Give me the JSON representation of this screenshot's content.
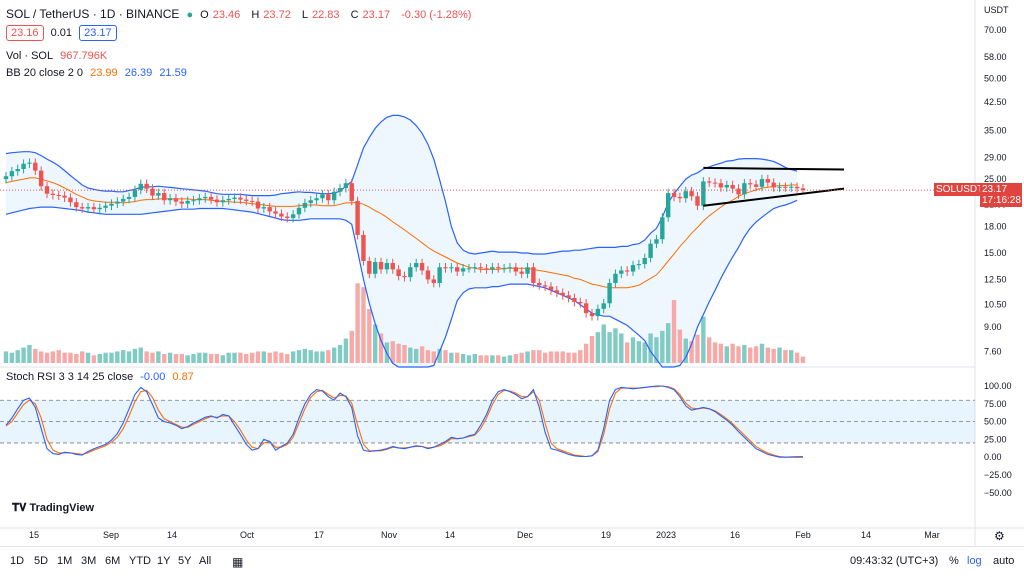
{
  "header": {
    "symbol": "SOL / TetherUS · 1D · BINANCE",
    "ohlc": {
      "o_label": "O",
      "o": "23.46",
      "h_label": "H",
      "h": "23.72",
      "l_label": "L",
      "l": "22.83",
      "c_label": "C",
      "c": "23.17",
      "chg": "-0.30 (-1.28%)"
    },
    "bid": "23.16",
    "spread": "0.01",
    "ask": "23.17"
  },
  "indicators": {
    "vol_label": "Vol · SOL",
    "vol_value": "967.796K",
    "bb_label": "BB 20 close 2 0",
    "bb_basis": "23.99",
    "bb_upper": "26.39",
    "bb_lower": "21.59",
    "stoch_label": "Stoch RSI 3 3 14 25 close",
    "stoch_k": "-0.00",
    "stoch_d": "0.87"
  },
  "axis": {
    "currency": "USDT",
    "price_ticks": [
      "70.00",
      "58.00",
      "50.00",
      "42.50",
      "35.00",
      "29.00",
      "25.00",
      "21.00",
      "18.00",
      "15.00",
      "12.50",
      "10.50",
      "9.00",
      "7.60"
    ],
    "rsi_ticks": [
      "100.00",
      "75.00",
      "50.00",
      "25.00",
      "0.00",
      "−25.00",
      "−50.00"
    ],
    "time_ticks": [
      "15",
      "Sep",
      "14",
      "Oct",
      "17",
      "Nov",
      "14",
      "Dec",
      "19",
      "2023",
      "16",
      "Feb",
      "14",
      "Mar"
    ],
    "symbol_tag": "SOLUSDT",
    "last_price": "23.17",
    "countdown": "17:16:28"
  },
  "bottom": {
    "timeframes": [
      "1D",
      "5D",
      "1M",
      "3M",
      "6M",
      "YTD",
      "1Y",
      "5Y",
      "All"
    ],
    "clock": "09:43:32 (UTC+3)",
    "pct": "%",
    "log": "log",
    "auto": "auto"
  },
  "brand": "TradingView",
  "colors": {
    "up": "#26a69a",
    "down": "#ef5350",
    "band": "#2962ff",
    "basis": "#ff6d00",
    "k": "#2962ff",
    "d": "#ff6d00",
    "vol_up": "#80cbc4",
    "vol_down": "#f7a9a7"
  },
  "chart_data": {
    "type": "candlestick",
    "scale": "log",
    "ylim": [
      7.0,
      75.0
    ],
    "closes": [
      25.5,
      26.4,
      26.8,
      27.8,
      28.0,
      26.5,
      23.8,
      22.6,
      22.4,
      22.3,
      22.0,
      21.3,
      20.6,
      20.4,
      20.6,
      20.3,
      20.5,
      20.8,
      21.1,
      21.4,
      21.8,
      22.1,
      23.2,
      24.2,
      23.4,
      22.3,
      22.7,
      21.6,
      21.9,
      21.4,
      21.1,
      21.5,
      21.6,
      21.9,
      22.1,
      21.7,
      21.3,
      21.6,
      21.8,
      22.0,
      21.7,
      21.5,
      21.4,
      20.4,
      20.6,
      20.0,
      19.7,
      19.3,
      19.1,
      19.6,
      20.5,
      21.2,
      21.6,
      21.9,
      22.5,
      21.6,
      22.9,
      23.5,
      24.3,
      21.5,
      17.0,
      14.2,
      13.0,
      14.1,
      13.4,
      14.0,
      13.4,
      12.8,
      12.7,
      13.6,
      14.0,
      13.3,
      12.5,
      12.2,
      13.6,
      13.5,
      13.6,
      13.2,
      13.5,
      13.5,
      13.6,
      13.5,
      13.4,
      13.6,
      13.5,
      13.5,
      13.6,
      13.2,
      13.0,
      13.6,
      12.2,
      12.0,
      11.9,
      11.6,
      11.4,
      11.2,
      11.0,
      10.7,
      10.6,
      9.9,
      9.7,
      10.2,
      10.6,
      12.2,
      13.0,
      13.3,
      13.2,
      13.8,
      13.9,
      14.5,
      16.0,
      16.5,
      19.2,
      22.7,
      22.1,
      21.9,
      23.0,
      22.2,
      20.8,
      24.6,
      24.4,
      24.3,
      23.6,
      24.0,
      23.4,
      22.5,
      24.3,
      24.1,
      23.7,
      25.0,
      24.4,
      23.6,
      23.7,
      23.6,
      23.7,
      23.46,
      23.17
    ],
    "bb_upper": [
      29.8,
      30.0,
      30.1,
      30.2,
      30.2,
      30.0,
      29.4,
      28.7,
      28.1,
      27.4,
      26.5,
      25.6,
      24.8,
      24.0,
      23.5,
      23.3,
      23.1,
      23.0,
      23.0,
      22.9,
      22.9,
      23.1,
      23.3,
      23.6,
      23.7,
      23.7,
      23.8,
      23.7,
      23.6,
      23.5,
      23.4,
      23.3,
      23.2,
      23.1,
      23.0,
      22.8,
      22.6,
      22.5,
      22.5,
      22.5,
      22.5,
      22.4,
      22.3,
      22.3,
      22.3,
      22.3,
      22.4,
      22.6,
      22.7,
      22.8,
      22.9,
      22.8,
      22.8,
      22.7,
      22.6,
      22.6,
      22.7,
      23.0,
      23.8,
      24.6,
      27.6,
      31.0,
      33.3,
      35.5,
      37.1,
      38.3,
      38.8,
      38.8,
      38.4,
      37.6,
      36.2,
      34.3,
      31.8,
      28.7,
      24.9,
      21.4,
      18.0,
      16.1,
      15.3,
      15.0,
      14.9,
      15.0,
      15.1,
      15.2,
      15.1,
      15.1,
      15.1,
      15.1,
      15.0,
      15.0,
      14.9,
      14.9,
      14.9,
      15.0,
      15.1,
      15.2,
      15.2,
      15.3,
      15.3,
      15.4,
      15.5,
      15.6,
      15.6,
      15.6,
      15.6,
      15.7,
      15.7,
      15.9,
      16.0,
      16.4,
      17.2,
      17.8,
      19.2,
      21.2,
      22.6,
      23.8,
      25.0,
      25.7,
      26.1,
      26.8,
      27.2,
      27.6,
      27.9,
      28.3,
      28.4,
      28.7,
      28.8,
      28.8,
      28.8,
      28.7,
      28.5,
      28.2,
      27.7,
      27.1,
      26.7,
      26.39
    ],
    "bb_lower": [
      19.6,
      19.8,
      20.0,
      20.2,
      20.4,
      20.5,
      20.6,
      20.6,
      20.6,
      20.5,
      20.4,
      20.3,
      20.2,
      20.1,
      19.9,
      19.8,
      19.7,
      19.6,
      19.6,
      19.6,
      19.6,
      19.6,
      19.6,
      19.6,
      19.7,
      19.8,
      19.9,
      20.0,
      20.1,
      20.2,
      20.3,
      20.3,
      20.3,
      20.4,
      20.4,
      20.4,
      20.4,
      20.4,
      20.3,
      20.2,
      20.1,
      20.0,
      19.9,
      19.7,
      19.5,
      19.3,
      19.1,
      18.9,
      18.8,
      18.8,
      18.8,
      18.9,
      19.0,
      19.0,
      19.0,
      19.0,
      19.0,
      19.0,
      18.8,
      18.3,
      15.2,
      12.5,
      10.6,
      9.2,
      8.2,
      7.5,
      7.0,
      6.6,
      6.4,
      6.3,
      6.3,
      6.4,
      6.6,
      6.9,
      7.6,
      8.4,
      9.5,
      10.8,
      11.4,
      11.7,
      11.8,
      11.8,
      11.8,
      11.9,
      11.9,
      12.0,
      12.1,
      12.1,
      12.1,
      12.1,
      12.0,
      11.9,
      11.8,
      11.6,
      11.4,
      11.2,
      11.0,
      10.8,
      10.5,
      10.2,
      9.9,
      9.8,
      9.7,
      9.7,
      9.5,
      9.3,
      9.1,
      8.8,
      8.5,
      8.2,
      7.6,
      7.2,
      6.8,
      6.5,
      6.6,
      6.9,
      7.3,
      8.0,
      9.0,
      9.8,
      10.7,
      11.6,
      12.6,
      13.6,
      14.6,
      15.6,
      16.8,
      17.8,
      18.6,
      19.2,
      19.8,
      20.4,
      20.7,
      20.9,
      21.2,
      21.59
    ],
    "bb_basis": [
      24.4,
      24.6,
      24.8,
      25.0,
      25.2,
      25.2,
      25.0,
      24.7,
      24.4,
      24.0,
      23.5,
      23.0,
      22.5,
      22.1,
      21.7,
      21.5,
      21.4,
      21.3,
      21.3,
      21.3,
      21.2,
      21.3,
      21.4,
      21.6,
      21.7,
      21.7,
      21.8,
      21.8,
      21.8,
      21.8,
      21.8,
      21.8,
      21.7,
      21.7,
      21.7,
      21.6,
      21.5,
      21.4,
      21.4,
      21.3,
      21.3,
      21.2,
      21.1,
      21.0,
      20.9,
      20.8,
      20.7,
      20.7,
      20.7,
      20.7,
      20.8,
      20.9,
      20.9,
      20.9,
      20.8,
      20.8,
      20.8,
      21.0,
      21.2,
      21.2,
      21.3,
      21.0,
      20.6,
      20.1,
      19.7,
      19.2,
      18.6,
      18.1,
      17.6,
      17.1,
      16.6,
      16.1,
      15.6,
      15.2,
      14.9,
      14.6,
      14.3,
      14.0,
      13.8,
      13.6,
      13.5,
      13.4,
      13.4,
      13.4,
      13.4,
      13.5,
      13.5,
      13.5,
      13.5,
      13.5,
      13.4,
      13.3,
      13.2,
      13.1,
      13.0,
      12.9,
      12.8,
      12.6,
      12.5,
      12.3,
      12.1,
      12.0,
      11.9,
      11.8,
      11.8,
      11.8,
      11.8,
      11.9,
      12.0,
      12.3,
      12.6,
      12.9,
      13.5,
      14.2,
      14.9,
      15.7,
      16.4,
      17.2,
      17.9,
      18.7,
      19.4,
      20.0,
      20.6,
      21.2,
      21.6,
      22.2,
      22.6,
      22.9,
      23.2,
      23.5,
      23.6,
      23.8,
      23.9,
      23.9,
      24.0,
      23.99
    ],
    "volume": [
      0.9,
      0.8,
      1.0,
      1.2,
      1.4,
      1.1,
      0.9,
      0.8,
      0.9,
      1.0,
      0.8,
      0.8,
      0.7,
      0.9,
      0.8,
      0.6,
      0.7,
      0.8,
      0.8,
      0.9,
      1.0,
      0.9,
      1.1,
      1.2,
      0.9,
      0.8,
      0.9,
      0.7,
      0.8,
      0.7,
      0.7,
      0.6,
      0.7,
      0.8,
      0.8,
      0.7,
      0.7,
      0.6,
      0.8,
      0.8,
      0.8,
      0.7,
      0.8,
      0.9,
      0.9,
      0.8,
      0.9,
      0.8,
      0.7,
      0.9,
      1.0,
      1.1,
      1.0,
      0.9,
      0.9,
      1.0,
      1.2,
      1.4,
      1.9,
      2.5,
      6.2,
      5.9,
      4.2,
      3.0,
      2.3,
      1.6,
      1.7,
      1.5,
      1.4,
      1.2,
      1.1,
      1.3,
      1.0,
      0.9,
      1.1,
      1.0,
      0.8,
      0.8,
      0.7,
      0.6,
      0.7,
      0.6,
      0.6,
      0.6,
      0.6,
      0.5,
      0.6,
      0.7,
      0.8,
      0.9,
      1.0,
      1.0,
      0.8,
      0.9,
      0.9,
      0.9,
      0.8,
      0.8,
      1.0,
      1.5,
      2.1,
      2.4,
      3.0,
      2.4,
      2.7,
      2.3,
      1.6,
      2.0,
      1.7,
      1.6,
      2.3,
      2.0,
      2.5,
      3.1,
      4.9,
      2.6,
      1.9,
      1.7,
      2.2,
      3.6,
      2.0,
      1.6,
      1.5,
      1.3,
      1.5,
      1.3,
      1.4,
      1.2,
      1.3,
      1.5,
      1.2,
      1.1,
      1.2,
      1.0,
      1.0,
      0.8,
      0.5
    ],
    "stoch_k": [
      45,
      55,
      68,
      80,
      83,
      70,
      40,
      12,
      5,
      4,
      7,
      6,
      4,
      3,
      8,
      12,
      15,
      18,
      24,
      33,
      48,
      68,
      88,
      98,
      92,
      74,
      55,
      50,
      48,
      45,
      40,
      43,
      48,
      52,
      56,
      58,
      55,
      60,
      58,
      45,
      32,
      18,
      10,
      12,
      25,
      22,
      10,
      15,
      20,
      32,
      55,
      75,
      88,
      95,
      93,
      85,
      80,
      90,
      85,
      70,
      30,
      10,
      8,
      9,
      10,
      12,
      15,
      13,
      12,
      14,
      16,
      15,
      12,
      14,
      18,
      22,
      28,
      26,
      27,
      30,
      32,
      45,
      60,
      80,
      92,
      95,
      92,
      88,
      82,
      85,
      95,
      70,
      35,
      12,
      10,
      7,
      4,
      2,
      1,
      1,
      2,
      10,
      40,
      80,
      95,
      98,
      97,
      96,
      97,
      98,
      99,
      100,
      100,
      98,
      95,
      85,
      72,
      66,
      68,
      70,
      68,
      64,
      58,
      52,
      45,
      36,
      28,
      20,
      12,
      8,
      4,
      2,
      0,
      0,
      0,
      0,
      0
    ],
    "stoch_d": [
      44,
      50,
      62,
      74,
      80,
      75,
      55,
      25,
      10,
      6,
      6,
      6,
      5,
      4,
      6,
      10,
      13,
      16,
      21,
      28,
      40,
      58,
      78,
      92,
      94,
      84,
      66,
      54,
      50,
      46,
      42,
      42,
      46,
      50,
      54,
      57,
      56,
      58,
      58,
      50,
      38,
      24,
      14,
      12,
      20,
      22,
      14,
      14,
      18,
      28,
      48,
      68,
      84,
      92,
      94,
      88,
      83,
      87,
      86,
      76,
      45,
      18,
      9,
      9,
      9,
      11,
      14,
      13,
      13,
      14,
      15,
      15,
      13,
      14,
      16,
      20,
      26,
      26,
      27,
      29,
      31,
      40,
      55,
      74,
      88,
      94,
      93,
      90,
      85,
      85,
      92,
      80,
      48,
      20,
      12,
      9,
      6,
      3,
      2,
      1,
      2,
      8,
      32,
      68,
      90,
      97,
      97,
      97,
      97,
      98,
      99,
      99,
      100,
      99,
      96,
      88,
      76,
      69,
      68,
      69,
      68,
      65,
      60,
      54,
      47,
      39,
      31,
      23,
      15,
      10,
      6,
      3,
      1,
      0,
      0.5,
      0.9,
      0.87
    ]
  }
}
